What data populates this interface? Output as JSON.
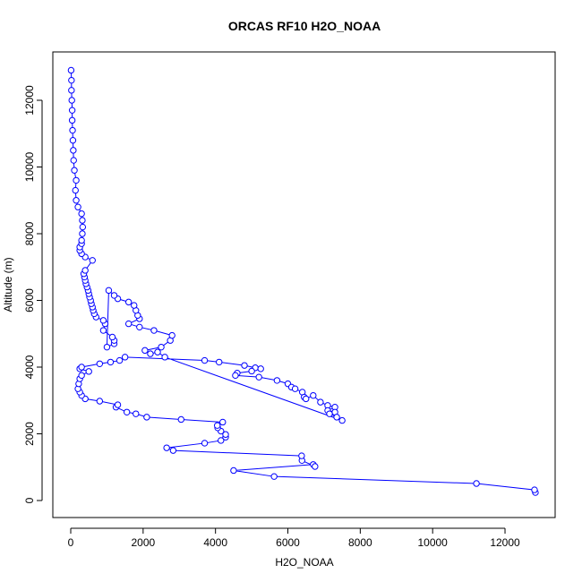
{
  "chart_data": {
    "type": "line",
    "title": "ORCAS RF10 H2O_NOAA",
    "x_label": "H2O_NOAA",
    "y_label": "Altitude (m)",
    "series": [
      {
        "name": "H2O_NOAA",
        "color": "#0000ff",
        "x": [
          12840,
          12815,
          11210,
          5620,
          4500,
          6700,
          6750,
          6390,
          6380,
          2830,
          2650,
          3700,
          4150,
          4280,
          4280,
          4150,
          4060,
          4050,
          4200,
          3050,
          2100,
          1800,
          1550,
          1250,
          1300,
          800,
          400,
          300,
          250,
          200,
          220,
          250,
          300,
          500,
          250,
          300,
          800,
          1100,
          1350,
          1500,
          3700,
          4100,
          4800,
          5100,
          5250,
          5000,
          4600,
          4550,
          5200,
          5700,
          6000,
          6100,
          6200,
          6400,
          6450,
          6500,
          6700,
          6900,
          7100,
          7300,
          7100,
          7300,
          7150,
          7350,
          7500,
          2600,
          2400,
          2200,
          2050,
          2500,
          2750,
          2800,
          2300,
          1900,
          1600,
          1900,
          1850,
          1800,
          1750,
          1600,
          1300,
          1200,
          1050,
          1000,
          1200,
          1200,
          1150,
          900,
          950,
          900,
          700,
          650,
          620,
          600,
          570,
          550,
          520,
          500,
          480,
          450,
          420,
          400,
          380,
          360,
          400,
          600,
          400,
          300,
          250,
          250,
          300,
          300,
          320,
          330,
          320,
          300,
          200,
          150,
          130,
          150,
          100,
          80,
          70,
          60,
          50,
          40,
          40,
          30,
          20,
          20,
          10
        ],
        "values": [
          240,
          320,
          510,
          720,
          900,
          1080,
          1020,
          1200,
          1340,
          1500,
          1580,
          1720,
          1800,
          1900,
          1980,
          2080,
          2180,
          2250,
          2350,
          2430,
          2500,
          2600,
          2650,
          2800,
          2870,
          2980,
          3050,
          3150,
          3250,
          3350,
          3500,
          3650,
          3750,
          3870,
          3950,
          4000,
          4100,
          4150,
          4200,
          4300,
          4200,
          4150,
          4050,
          3980,
          3950,
          3880,
          3820,
          3750,
          3700,
          3600,
          3500,
          3400,
          3350,
          3250,
          3100,
          3050,
          3150,
          2950,
          2850,
          2800,
          2700,
          2650,
          2600,
          2500,
          2400,
          4300,
          4450,
          4400,
          4500,
          4600,
          4800,
          4950,
          5100,
          5200,
          5300,
          5450,
          5550,
          5700,
          5850,
          5950,
          6050,
          6150,
          6300,
          4600,
          4700,
          4800,
          4900,
          5100,
          5300,
          5400,
          5500,
          5600,
          5700,
          5800,
          5900,
          6000,
          6100,
          6200,
          6300,
          6400,
          6500,
          6600,
          6700,
          6800,
          6900,
          7200,
          7300,
          7400,
          7500,
          7600,
          7700,
          7800,
          8000,
          8200,
          8400,
          8600,
          8800,
          9000,
          9300,
          9600,
          9900,
          10200,
          10500,
          10800,
          11100,
          11400,
          11700,
          12000,
          12300,
          12600,
          12900
        ]
      }
    ],
    "xlim": [
      -495,
      13385
    ],
    "ylim": [
      -510,
      13450
    ],
    "xticks": [
      0,
      2000,
      4000,
      6000,
      8000,
      10000,
      12000
    ],
    "yticks": [
      0,
      2000,
      4000,
      6000,
      8000,
      10000,
      12000
    ]
  }
}
